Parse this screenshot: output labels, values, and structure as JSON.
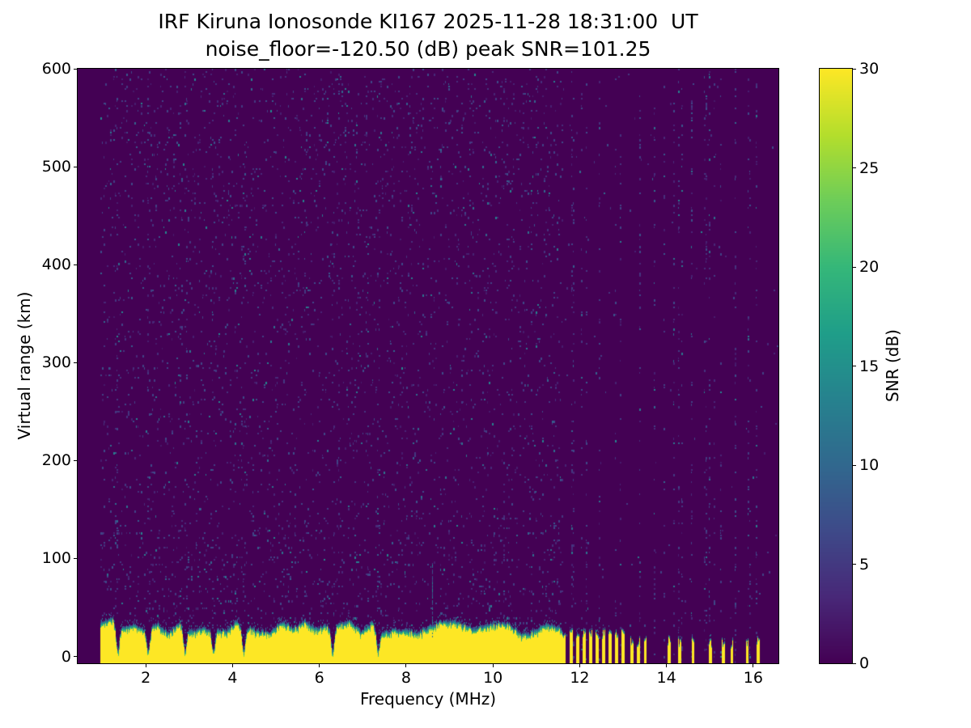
{
  "figure": {
    "background_color": "#ffffff",
    "frame_color": "#000000"
  },
  "chart_data": {
    "type": "heatmap",
    "title": "IRF Kiruna Ionosonde KI167 2025-11-28 18:31:00  UT",
    "subtitle": "noise_floor=-120.50 (dB) peak SNR=101.25",
    "station": "IRF Kiruna Ionosonde KI167",
    "timestamp_ut": "2025-11-28 18:31:00",
    "noise_floor_db": -120.5,
    "peak_snr_db": 101.25,
    "xlabel": "Frequency (MHz)",
    "ylabel": "Virtual range (km)",
    "x_range_mhz": [
      0.43,
      16.58
    ],
    "y_range_km": [
      -7,
      600
    ],
    "x_ticks": [
      2,
      4,
      6,
      8,
      10,
      12,
      14,
      16
    ],
    "y_ticks": [
      0,
      100,
      200,
      300,
      400,
      500,
      600
    ],
    "colorbar": {
      "label": "SNR (dB)",
      "min": 0,
      "max": 30,
      "ticks": [
        0,
        5,
        10,
        15,
        20,
        25,
        30
      ],
      "colormap": "viridis",
      "viridis_anchors": [
        [
          68,
          1,
          84
        ],
        [
          72,
          40,
          120
        ],
        [
          62,
          74,
          137
        ],
        [
          49,
          104,
          142
        ],
        [
          38,
          130,
          142
        ],
        [
          31,
          158,
          137
        ],
        [
          53,
          183,
          121
        ],
        [
          109,
          205,
          89
        ],
        [
          180,
          222,
          44
        ],
        [
          253,
          231,
          37
        ]
      ]
    },
    "background_snr_db": 0,
    "speckle_snr_db_range": [
      2,
      14
    ],
    "ground_echo_band": {
      "freq_start_mhz": 0.95,
      "base_km": -7,
      "top_km_mean": 31,
      "top_km_jitter": 7,
      "continuous_to_mhz": 11.6,
      "notch_freqs_mhz": [
        1.35,
        2.05,
        2.9,
        3.55,
        4.25,
        6.3,
        7.35
      ],
      "spike": {
        "freq_mhz": 8.6,
        "top_km": 95
      }
    },
    "stripe_comb": {
      "start_mhz": 11.6,
      "end_mhz": 13.05,
      "period_mhz": 0.15,
      "duty": 0.5,
      "top_km": 25
    },
    "isolated_stripes_mhz": [
      13.2,
      13.35,
      13.5,
      14.05,
      14.3,
      14.6,
      15.0,
      15.3,
      15.5,
      15.85,
      16.1
    ]
  }
}
